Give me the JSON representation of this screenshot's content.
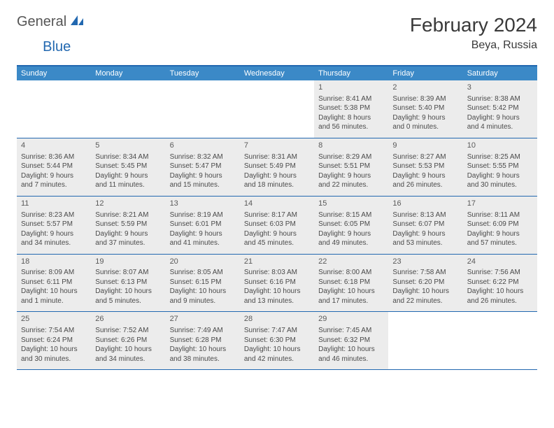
{
  "logo": {
    "general": "General",
    "blue": "Blue"
  },
  "title": "February 2024",
  "location": "Beya, Russia",
  "colors": {
    "header_bg": "#3b89c7",
    "rule": "#2268b0",
    "shaded": "#ececec",
    "page_bg": "#ffffff",
    "text": "#333333",
    "logo_blue": "#2268b0",
    "logo_gray": "#555555"
  },
  "day_headers": [
    "Sunday",
    "Monday",
    "Tuesday",
    "Wednesday",
    "Thursday",
    "Friday",
    "Saturday"
  ],
  "weeks": [
    [
      {
        "empty": true
      },
      {
        "empty": true
      },
      {
        "empty": true
      },
      {
        "empty": true
      },
      {
        "date": "1",
        "sunrise": "Sunrise: 8:41 AM",
        "sunset": "Sunset: 5:38 PM",
        "day1": "Daylight: 8 hours",
        "day2": "and 56 minutes."
      },
      {
        "date": "2",
        "sunrise": "Sunrise: 8:39 AM",
        "sunset": "Sunset: 5:40 PM",
        "day1": "Daylight: 9 hours",
        "day2": "and 0 minutes."
      },
      {
        "date": "3",
        "sunrise": "Sunrise: 8:38 AM",
        "sunset": "Sunset: 5:42 PM",
        "day1": "Daylight: 9 hours",
        "day2": "and 4 minutes."
      }
    ],
    [
      {
        "date": "4",
        "sunrise": "Sunrise: 8:36 AM",
        "sunset": "Sunset: 5:44 PM",
        "day1": "Daylight: 9 hours",
        "day2": "and 7 minutes."
      },
      {
        "date": "5",
        "sunrise": "Sunrise: 8:34 AM",
        "sunset": "Sunset: 5:45 PM",
        "day1": "Daylight: 9 hours",
        "day2": "and 11 minutes."
      },
      {
        "date": "6",
        "sunrise": "Sunrise: 8:32 AM",
        "sunset": "Sunset: 5:47 PM",
        "day1": "Daylight: 9 hours",
        "day2": "and 15 minutes."
      },
      {
        "date": "7",
        "sunrise": "Sunrise: 8:31 AM",
        "sunset": "Sunset: 5:49 PM",
        "day1": "Daylight: 9 hours",
        "day2": "and 18 minutes."
      },
      {
        "date": "8",
        "sunrise": "Sunrise: 8:29 AM",
        "sunset": "Sunset: 5:51 PM",
        "day1": "Daylight: 9 hours",
        "day2": "and 22 minutes."
      },
      {
        "date": "9",
        "sunrise": "Sunrise: 8:27 AM",
        "sunset": "Sunset: 5:53 PM",
        "day1": "Daylight: 9 hours",
        "day2": "and 26 minutes."
      },
      {
        "date": "10",
        "sunrise": "Sunrise: 8:25 AM",
        "sunset": "Sunset: 5:55 PM",
        "day1": "Daylight: 9 hours",
        "day2": "and 30 minutes."
      }
    ],
    [
      {
        "date": "11",
        "sunrise": "Sunrise: 8:23 AM",
        "sunset": "Sunset: 5:57 PM",
        "day1": "Daylight: 9 hours",
        "day2": "and 34 minutes."
      },
      {
        "date": "12",
        "sunrise": "Sunrise: 8:21 AM",
        "sunset": "Sunset: 5:59 PM",
        "day1": "Daylight: 9 hours",
        "day2": "and 37 minutes."
      },
      {
        "date": "13",
        "sunrise": "Sunrise: 8:19 AM",
        "sunset": "Sunset: 6:01 PM",
        "day1": "Daylight: 9 hours",
        "day2": "and 41 minutes."
      },
      {
        "date": "14",
        "sunrise": "Sunrise: 8:17 AM",
        "sunset": "Sunset: 6:03 PM",
        "day1": "Daylight: 9 hours",
        "day2": "and 45 minutes."
      },
      {
        "date": "15",
        "sunrise": "Sunrise: 8:15 AM",
        "sunset": "Sunset: 6:05 PM",
        "day1": "Daylight: 9 hours",
        "day2": "and 49 minutes."
      },
      {
        "date": "16",
        "sunrise": "Sunrise: 8:13 AM",
        "sunset": "Sunset: 6:07 PM",
        "day1": "Daylight: 9 hours",
        "day2": "and 53 minutes."
      },
      {
        "date": "17",
        "sunrise": "Sunrise: 8:11 AM",
        "sunset": "Sunset: 6:09 PM",
        "day1": "Daylight: 9 hours",
        "day2": "and 57 minutes."
      }
    ],
    [
      {
        "date": "18",
        "sunrise": "Sunrise: 8:09 AM",
        "sunset": "Sunset: 6:11 PM",
        "day1": "Daylight: 10 hours",
        "day2": "and 1 minute."
      },
      {
        "date": "19",
        "sunrise": "Sunrise: 8:07 AM",
        "sunset": "Sunset: 6:13 PM",
        "day1": "Daylight: 10 hours",
        "day2": "and 5 minutes."
      },
      {
        "date": "20",
        "sunrise": "Sunrise: 8:05 AM",
        "sunset": "Sunset: 6:15 PM",
        "day1": "Daylight: 10 hours",
        "day2": "and 9 minutes."
      },
      {
        "date": "21",
        "sunrise": "Sunrise: 8:03 AM",
        "sunset": "Sunset: 6:16 PM",
        "day1": "Daylight: 10 hours",
        "day2": "and 13 minutes."
      },
      {
        "date": "22",
        "sunrise": "Sunrise: 8:00 AM",
        "sunset": "Sunset: 6:18 PM",
        "day1": "Daylight: 10 hours",
        "day2": "and 17 minutes."
      },
      {
        "date": "23",
        "sunrise": "Sunrise: 7:58 AM",
        "sunset": "Sunset: 6:20 PM",
        "day1": "Daylight: 10 hours",
        "day2": "and 22 minutes."
      },
      {
        "date": "24",
        "sunrise": "Sunrise: 7:56 AM",
        "sunset": "Sunset: 6:22 PM",
        "day1": "Daylight: 10 hours",
        "day2": "and 26 minutes."
      }
    ],
    [
      {
        "date": "25",
        "sunrise": "Sunrise: 7:54 AM",
        "sunset": "Sunset: 6:24 PM",
        "day1": "Daylight: 10 hours",
        "day2": "and 30 minutes."
      },
      {
        "date": "26",
        "sunrise": "Sunrise: 7:52 AM",
        "sunset": "Sunset: 6:26 PM",
        "day1": "Daylight: 10 hours",
        "day2": "and 34 minutes."
      },
      {
        "date": "27",
        "sunrise": "Sunrise: 7:49 AM",
        "sunset": "Sunset: 6:28 PM",
        "day1": "Daylight: 10 hours",
        "day2": "and 38 minutes."
      },
      {
        "date": "28",
        "sunrise": "Sunrise: 7:47 AM",
        "sunset": "Sunset: 6:30 PM",
        "day1": "Daylight: 10 hours",
        "day2": "and 42 minutes."
      },
      {
        "date": "29",
        "sunrise": "Sunrise: 7:45 AM",
        "sunset": "Sunset: 6:32 PM",
        "day1": "Daylight: 10 hours",
        "day2": "and 46 minutes."
      },
      {
        "empty": true
      },
      {
        "empty": true
      }
    ]
  ]
}
